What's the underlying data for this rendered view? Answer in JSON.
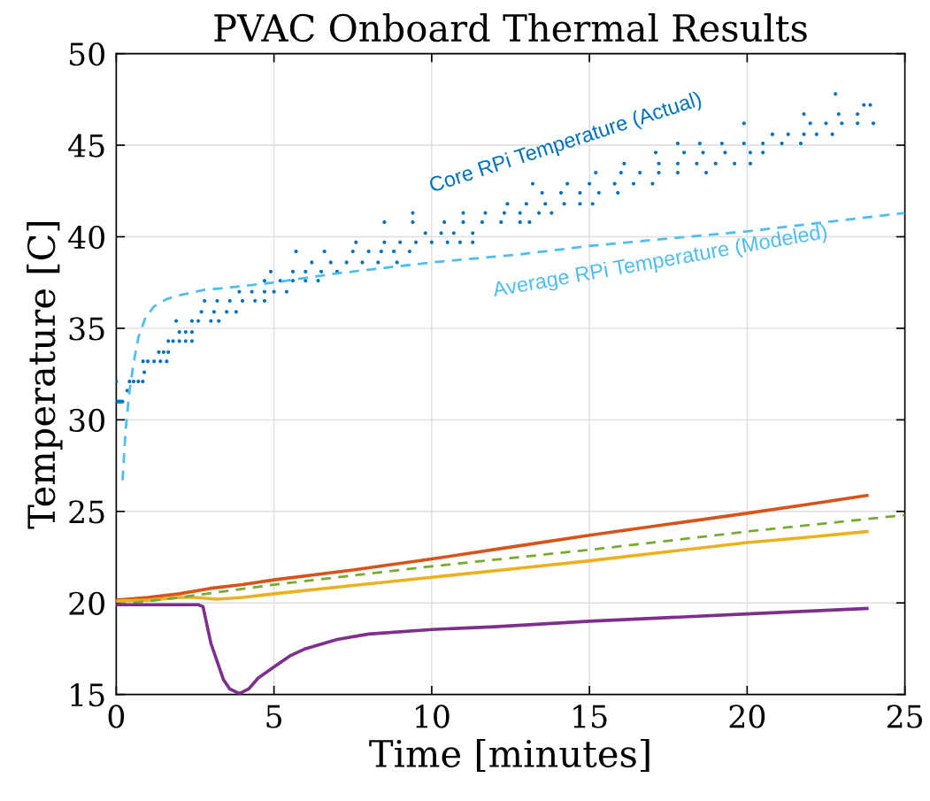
{
  "chart_data": {
    "type": "line",
    "title": "PVAC Onboard Thermal Results",
    "xlabel": "Time [minutes]",
    "ylabel": "Temperature [C]",
    "xlim": [
      0,
      25
    ],
    "ylim": [
      15,
      50
    ],
    "xticks": [
      0,
      5,
      10,
      15,
      20,
      25
    ],
    "yticks": [
      15,
      20,
      25,
      30,
      35,
      40,
      45,
      50
    ],
    "grid": true,
    "series": [
      {
        "type": "scatter",
        "marker": "circle",
        "color": "#0072bd",
        "x": [
          0,
          0.05,
          0.1,
          0.15,
          0.2,
          0,
          0.35,
          0.42,
          0.55,
          0.7,
          0.84,
          0.89,
          0.85,
          1.0,
          1.2,
          1.4,
          1.6,
          1.35,
          1.5,
          1.65,
          1.65,
          1.8,
          2.0,
          2.2,
          2.4,
          2.0,
          2.2,
          2.4,
          1.9,
          2.4,
          2.6,
          3.0,
          3.25,
          2.7,
          3.1,
          3.5,
          3.8,
          2.8,
          3.2,
          3.6,
          4.0,
          4.4,
          4.7,
          3.9,
          4.3,
          4.7,
          5.0,
          5.4,
          4.7,
          5.2,
          5.6,
          6.0,
          6.4,
          4.9,
          5.6,
          6.0,
          6.5,
          7.0,
          6.2,
          6.8,
          7.3,
          7.8,
          8.3,
          8.9,
          5.7,
          6.6,
          7.5,
          8.0,
          8.4,
          8.8,
          9.3,
          7.6,
          8.5,
          9.0,
          9.5,
          10.0,
          10.5,
          10.9,
          11.3,
          9.8,
          10.3,
          10.7,
          11.3,
          8.5,
          9.4,
          10.4,
          11.0,
          11.6,
          12.2,
          12.8,
          13.1,
          9.4,
          11.0,
          11.7,
          12.3,
          12.8,
          13.4,
          13.8,
          12.4,
          13.0,
          13.6,
          14.2,
          14.7,
          15.1,
          13.5,
          14.1,
          14.7,
          15.3,
          15.9,
          13.2,
          14.3,
          15.0,
          15.8,
          16.4,
          17.0,
          15.2,
          16.0,
          16.6,
          17.2,
          17.8,
          18.7,
          16.1,
          17.2,
          17.8,
          18.4,
          19.0,
          19.6,
          20.1,
          17.1,
          18.0,
          18.6,
          19.3,
          20.1,
          20.5,
          17.8,
          18.5,
          19.2,
          19.9,
          20.5,
          21.1,
          21.7,
          20.8,
          21.3,
          21.8,
          22.2,
          22.7,
          19.9,
          22.0,
          22.5,
          23.0,
          23.5,
          24.0,
          21.8,
          22.9,
          23.5,
          23.7,
          23.9,
          22.8
        ],
        "values": [
          31.0,
          31.0,
          31.0,
          31.0,
          31.0,
          32.1,
          31.6,
          32.1,
          32.1,
          32.1,
          32.1,
          32.6,
          33.2,
          33.2,
          33.2,
          33.2,
          33.2,
          33.7,
          33.7,
          33.7,
          34.3,
          34.3,
          34.3,
          34.3,
          34.3,
          34.8,
          34.8,
          34.8,
          35.4,
          35.4,
          35.4,
          35.4,
          35.4,
          35.9,
          35.9,
          35.9,
          35.9,
          36.5,
          36.5,
          36.5,
          36.5,
          36.5,
          36.5,
          37.0,
          37.0,
          37.0,
          37.0,
          37.0,
          37.6,
          37.6,
          37.6,
          37.6,
          37.6,
          38.1,
          38.1,
          38.1,
          38.1,
          38.1,
          38.6,
          38.6,
          38.6,
          38.6,
          38.6,
          38.6,
          39.2,
          39.2,
          39.2,
          39.2,
          39.2,
          39.2,
          39.2,
          39.7,
          39.7,
          39.7,
          39.7,
          39.7,
          39.7,
          39.7,
          39.7,
          40.2,
          40.2,
          40.2,
          40.2,
          40.8,
          40.8,
          40.8,
          40.8,
          40.8,
          40.8,
          40.8,
          40.8,
          41.3,
          41.3,
          41.3,
          41.3,
          41.3,
          41.3,
          41.3,
          41.8,
          41.8,
          41.8,
          41.8,
          41.8,
          41.8,
          42.4,
          42.4,
          42.4,
          42.4,
          42.4,
          42.9,
          42.9,
          42.9,
          42.9,
          42.9,
          42.9,
          43.5,
          43.5,
          43.5,
          43.5,
          43.5,
          43.5,
          44.0,
          44.0,
          44.0,
          44.0,
          44.0,
          44.0,
          44.0,
          44.6,
          44.6,
          44.6,
          44.6,
          44.6,
          44.6,
          45.1,
          45.1,
          45.1,
          45.1,
          45.1,
          45.1,
          45.1,
          45.6,
          45.6,
          45.6,
          45.6,
          45.6,
          46.2,
          46.2,
          46.2,
          46.2,
          46.2,
          46.2,
          46.7,
          46.7,
          46.7,
          47.2,
          47.2,
          47.8
        ]
      },
      {
        "line_style": "dashed",
        "color": "#4dbeee",
        "x": [
          0.2,
          0.3,
          0.42,
          0.56,
          0.7,
          0.93,
          1.2,
          1.6,
          2.0,
          2.8,
          4,
          5,
          7,
          10,
          12.6,
          15,
          20,
          25
        ],
        "values": [
          26.7,
          29.5,
          31.6,
          33.2,
          34.5,
          35.6,
          36.2,
          36.6,
          36.8,
          37.1,
          37.3,
          37.5,
          38.0,
          38.6,
          39.0,
          39.5,
          40.3,
          41.3
        ]
      },
      {
        "color": "#d95319",
        "x": [
          0,
          1,
          2,
          3,
          4,
          5,
          7.5,
          10,
          12.5,
          15,
          17.5,
          20,
          22,
          23.8
        ],
        "values": [
          20.15,
          20.3,
          20.5,
          20.8,
          21.0,
          21.26,
          21.8,
          22.4,
          23.05,
          23.7,
          24.3,
          24.9,
          25.4,
          25.87
        ]
      },
      {
        "color": "#edb120",
        "x": [
          0,
          1,
          2,
          2.5,
          3.2,
          4,
          5,
          7.5,
          10,
          12.5,
          15,
          17.5,
          20,
          22,
          23.8
        ],
        "values": [
          20.1,
          20.15,
          20.3,
          20.3,
          20.2,
          20.3,
          20.5,
          20.95,
          21.4,
          21.85,
          22.3,
          22.8,
          23.3,
          23.6,
          23.9
        ]
      },
      {
        "line_style": "dashed",
        "color": "#77ac30",
        "x": [
          0,
          2,
          5,
          10,
          15,
          20,
          25
        ],
        "values": [
          19.9,
          20.3,
          21.0,
          22.0,
          22.9,
          23.9,
          24.8
        ]
      },
      {
        "color": "#7e2f8e",
        "x": [
          0,
          2.6,
          2.75,
          2.85,
          3.0,
          3.2,
          3.4,
          3.6,
          3.9,
          4.2,
          4.5,
          5,
          5.5,
          6,
          7,
          8,
          10,
          12,
          15,
          20,
          23.8
        ],
        "values": [
          19.9,
          19.9,
          19.8,
          19.0,
          17.8,
          16.8,
          15.8,
          15.3,
          15.05,
          15.3,
          15.9,
          16.5,
          17.1,
          17.5,
          18.0,
          18.3,
          18.55,
          18.7,
          19.0,
          19.4,
          19.7
        ]
      }
    ],
    "annotations": [
      "Core RPi Temperature (Actual)",
      "Average RPi Temperature (Modeled)"
    ]
  }
}
